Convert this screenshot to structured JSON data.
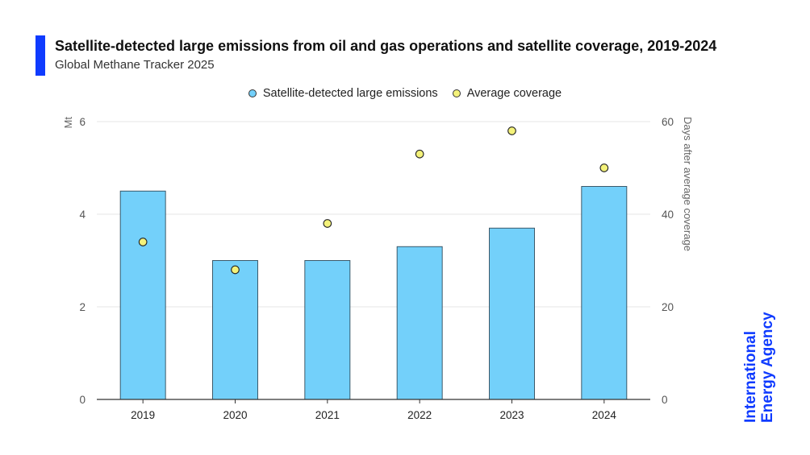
{
  "header": {
    "title": "Satellite-detected large emissions from oil and gas operations and satellite coverage, 2019-2024",
    "subtitle": "Global Methane Tracker 2025"
  },
  "legend": {
    "items": [
      {
        "label": "Satellite-detected large emissions",
        "color": "#73d0fa"
      },
      {
        "label": "Average coverage",
        "color": "#f4f27a"
      }
    ]
  },
  "logo": {
    "line1": "International",
    "line2": "Energy Agency",
    "color": "#0f3bff"
  },
  "chart_data": {
    "type": "bar",
    "categories": [
      "2019",
      "2020",
      "2021",
      "2022",
      "2023",
      "2024"
    ],
    "series": [
      {
        "name": "Satellite-detected large emissions",
        "type": "bar",
        "axis": "left",
        "values": [
          4.5,
          3.0,
          3.0,
          3.3,
          3.7,
          4.6
        ],
        "color": "#73d0fa"
      },
      {
        "name": "Average coverage",
        "type": "scatter",
        "axis": "right",
        "values": [
          34,
          28,
          38,
          53,
          58,
          50
        ],
        "color": "#f4f27a"
      }
    ],
    "ylabel": "Mt",
    "y2label": "Days after average coverage",
    "ylim": [
      0,
      6
    ],
    "y2lim": [
      0,
      60
    ],
    "yticks": [
      "0",
      "2",
      "4",
      "6"
    ],
    "y2ticks": [
      "0",
      "20",
      "40",
      "60"
    ],
    "grid": true,
    "legend_position": "top-center"
  }
}
